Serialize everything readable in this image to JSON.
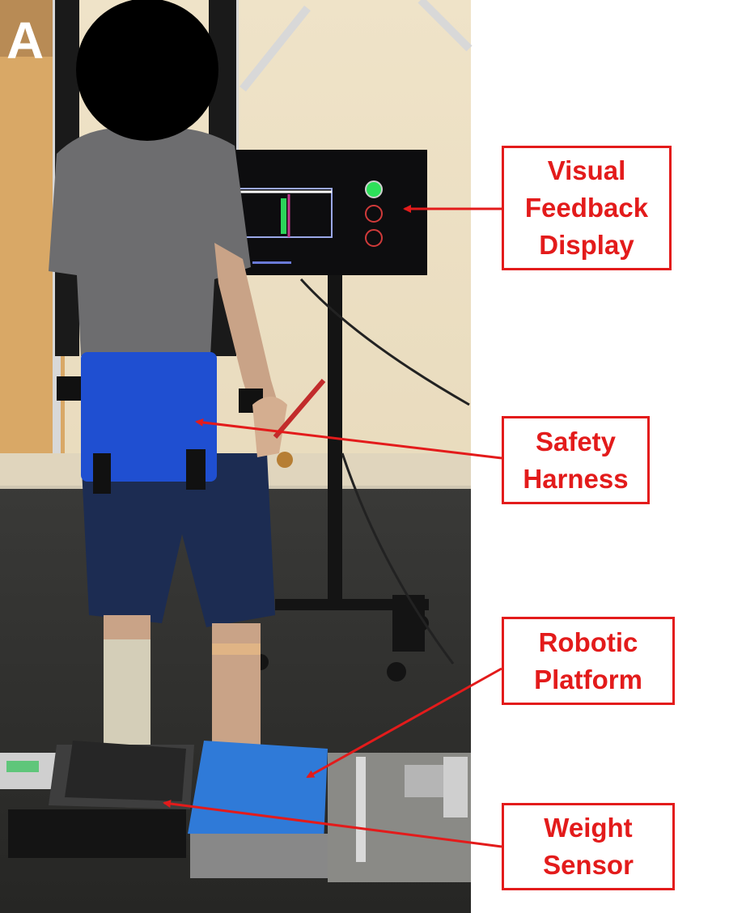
{
  "panel": {
    "letter": "A"
  },
  "labels": {
    "visual_feedback": "Visual Feedback Display",
    "safety_harness": "Safety Harness",
    "robotic_platform": "Robotic Platform",
    "weight_sensor": "Weight Sensor"
  },
  "colors": {
    "annotation": "#e31b1b",
    "harness": "#1f4fd1",
    "platform": "#2f7ad8"
  }
}
